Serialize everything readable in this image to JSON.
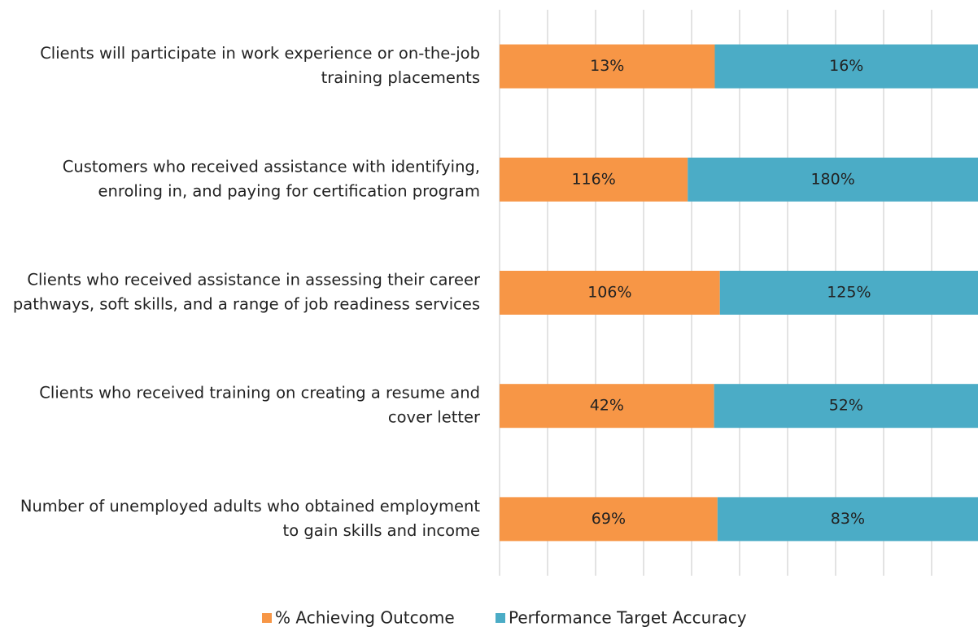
{
  "chart_data": {
    "type": "bar",
    "orientation": "horizontal",
    "stacked": "percent",
    "categories": [
      [
        "Clients will participate in work experience or on-the-job",
        "training placements"
      ],
      [
        "Customers who received assistance with identifying,",
        "enroling in, and paying for certification program"
      ],
      [
        "Clients who received assistance in assessing their career",
        "pathways, soft skills, and a range of job readiness services"
      ],
      [
        "Clients who received training on creating a resume and",
        "cover letter"
      ],
      [
        "Number of unemployed adults who obtained employment",
        "to gain skills and income"
      ]
    ],
    "series": [
      {
        "name": "% Achieving Outcome",
        "color": "#f79646",
        "values": [
          13,
          116,
          106,
          42,
          69
        ],
        "value_labels": [
          "13%",
          "116%",
          "106%",
          "42%",
          "69%"
        ]
      },
      {
        "name": "Performance Target Accuracy",
        "color": "#4bacc6",
        "values": [
          16,
          180,
          125,
          52,
          83
        ],
        "value_labels": [
          "16%",
          "180%",
          "125%",
          "52%",
          "83%"
        ]
      }
    ],
    "xlim": [
      0,
      100
    ],
    "xticks": [
      0,
      10,
      20,
      30,
      40,
      50,
      60,
      70,
      80,
      90,
      100
    ],
    "grid": true,
    "legend": "bottom"
  }
}
